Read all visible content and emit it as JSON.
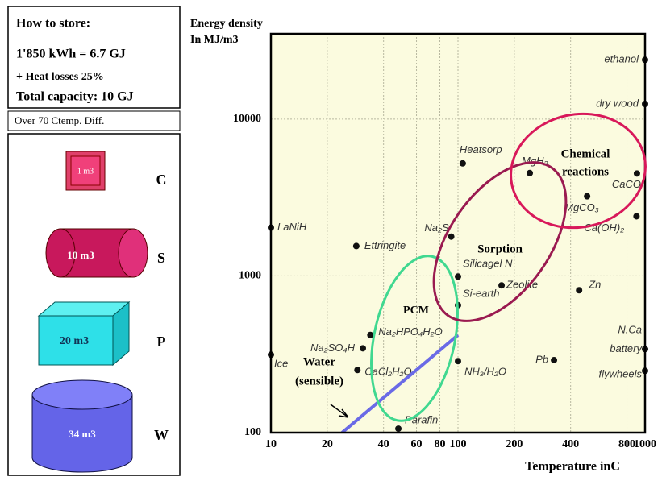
{
  "panel": {
    "header": [
      "How to store:",
      "1'850 kWh = 6.7 GJ",
      "+ Heat losses 25%",
      "Total capacity: 10 GJ"
    ],
    "note": "Over  70 Ctemp. Diff.",
    "items": [
      {
        "volume": "1 m3",
        "letter": "C"
      },
      {
        "volume": "10 m3",
        "letter": "S"
      },
      {
        "volume": "20 m3",
        "letter": "P"
      },
      {
        "volume": "34 m3",
        "letter": "W"
      }
    ]
  },
  "chart_data": {
    "type": "scatter",
    "ylabel": [
      "Energy density",
      "In MJ/m3"
    ],
    "xlabel": "Temperature inC",
    "xscale": "log",
    "yscale": "log",
    "grid": true,
    "color": "#111111",
    "xlim": [
      10,
      1000
    ],
    "ylim": [
      100,
      35000
    ],
    "xticks": [
      10,
      20,
      40,
      60,
      80,
      100,
      200,
      400,
      800,
      1000
    ],
    "yticks": [
      100,
      1000,
      10000
    ],
    "labels": [
      "ethanol",
      "dry wood",
      "LaNiH",
      "Ettringite",
      "Heatsorp",
      "MgH₂",
      "CaCO",
      "MgCO₃",
      "Ca(OH)₂",
      "Na₂S",
      "Silicagel N",
      "Zeolite",
      "Si-earth",
      "Zn",
      "Na₂HPO₄H₂O",
      "Na₂SO₄H",
      "Ice",
      "CaCl₂H₂O",
      "NH₃/H₂O",
      "Pb",
      "battery",
      "flywheels",
      "Parafin"
    ],
    "x": [
      1000,
      1000,
      10,
      28.6,
      106,
      242,
      905,
      490,
      900,
      92,
      100,
      171,
      100,
      444,
      34,
      31,
      10,
      29,
      100,
      326,
      1000,
      1000,
      48
    ],
    "values": [
      23900,
      12500,
      2030,
      1550,
      5220,
      4530,
      4500,
      3220,
      2400,
      1780,
      990,
      870,
      650,
      810,
      420,
      345,
      314,
      251,
      286,
      290,
      341,
      248,
      106
    ],
    "water_line": {
      "name": "Water",
      "x": [
        24,
        100
      ],
      "y": [
        100,
        420
      ],
      "color": "#6a6ae6"
    },
    "annotations": [
      "PCM",
      "Sorption",
      "Chemical",
      "reactions",
      "Water",
      "(sensible)",
      "N.Ca"
    ]
  }
}
